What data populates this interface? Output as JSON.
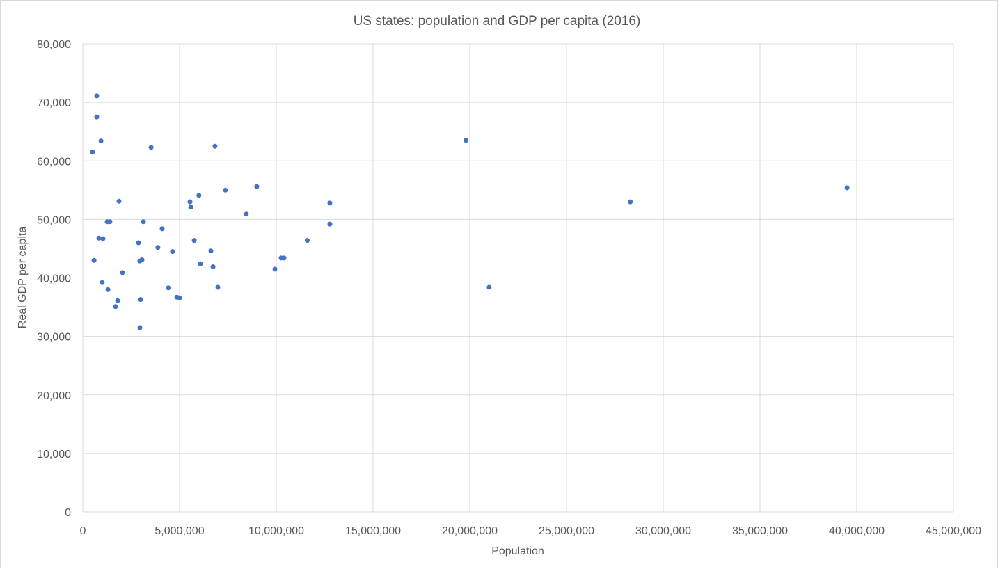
{
  "chart_data": {
    "type": "scatter",
    "title": "US states: population and GDP per capita (2016)",
    "xlabel": "Population",
    "ylabel": "Real GDP per capita",
    "xlim": [
      0,
      45000000
    ],
    "ylim": [
      0,
      80000
    ],
    "xticks": [
      0,
      5000000,
      10000000,
      15000000,
      20000000,
      25000000,
      30000000,
      35000000,
      40000000,
      45000000
    ],
    "xtick_labels": [
      "0",
      "5,000,000",
      "10,000,000",
      "15,000,000",
      "20,000,000",
      "25,000,000",
      "30,000,000",
      "35,000,000",
      "40,000,000",
      "45,000,000"
    ],
    "yticks": [
      0,
      10000,
      20000,
      30000,
      40000,
      50000,
      60000,
      70000,
      80000
    ],
    "ytick_labels": [
      "0",
      "10,000",
      "20,000",
      "30,000",
      "40,000",
      "50,000",
      "60,000",
      "70,000",
      "80,000"
    ],
    "grid": true,
    "marker_color": "#4472C4",
    "points": [
      [
        720000,
        71100
      ],
      [
        720000,
        67500
      ],
      [
        940000,
        63400
      ],
      [
        500000,
        61500
      ],
      [
        3530000,
        62300
      ],
      [
        6830000,
        62500
      ],
      [
        19800000,
        63500
      ],
      [
        39500000,
        55400
      ],
      [
        28300000,
        53000
      ],
      [
        21000000,
        38400
      ],
      [
        1870000,
        53100
      ],
      [
        1260000,
        49600
      ],
      [
        1400000,
        49600
      ],
      [
        830000,
        46800
      ],
      [
        1040000,
        46700
      ],
      [
        580000,
        43000
      ],
      [
        1000000,
        39200
      ],
      [
        1300000,
        38000
      ],
      [
        1800000,
        36100
      ],
      [
        1690000,
        35100
      ],
      [
        2050000,
        40900
      ],
      [
        2880000,
        46000
      ],
      [
        2950000,
        42900
      ],
      [
        3060000,
        43100
      ],
      [
        3130000,
        49600
      ],
      [
        2990000,
        36300
      ],
      [
        2950000,
        31500
      ],
      [
        3880000,
        45200
      ],
      [
        4100000,
        48400
      ],
      [
        4420000,
        38300
      ],
      [
        4640000,
        44500
      ],
      [
        4860000,
        36700
      ],
      [
        5000000,
        36600
      ],
      [
        5540000,
        53000
      ],
      [
        5580000,
        52100
      ],
      [
        6000000,
        54100
      ],
      [
        5760000,
        46400
      ],
      [
        6080000,
        42400
      ],
      [
        6620000,
        44600
      ],
      [
        6730000,
        41900
      ],
      [
        6980000,
        38400
      ],
      [
        7370000,
        55000
      ],
      [
        8990000,
        55600
      ],
      [
        8450000,
        50900
      ],
      [
        9930000,
        41500
      ],
      [
        10250000,
        43400
      ],
      [
        10400000,
        43400
      ],
      [
        11600000,
        46400
      ],
      [
        12770000,
        52800
      ],
      [
        12770000,
        49200
      ]
    ]
  }
}
